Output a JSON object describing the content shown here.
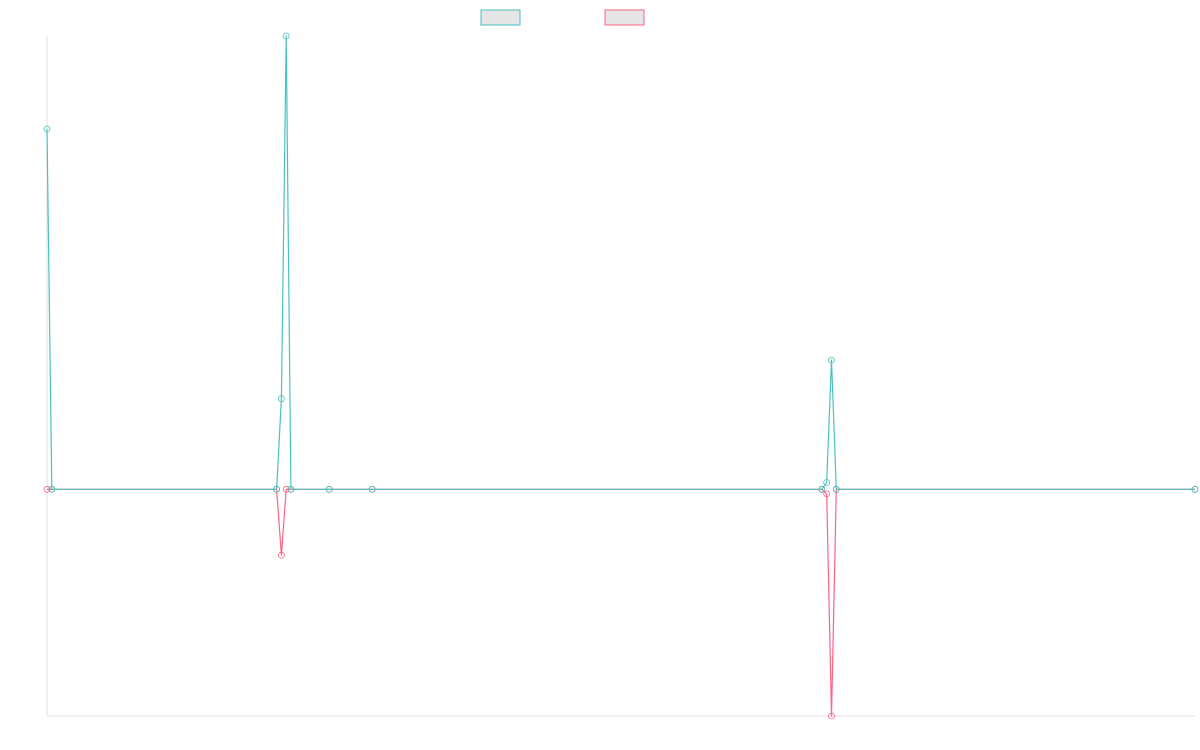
{
  "colors": {
    "series_a_stroke": "#4bc0c0",
    "series_b_stroke": "#ff6384",
    "legend_fill": "#e6e6e6",
    "axis": "#e0e0e0",
    "background": "#ffffff"
  },
  "chart_data": {
    "type": "line",
    "title": "",
    "xlabel": "",
    "ylabel": "",
    "grid": false,
    "legend_position": "top",
    "x": [
      0,
      1,
      48,
      49,
      50,
      51,
      59,
      68,
      162,
      163,
      164,
      165,
      240
    ],
    "ylim": [
      -100,
      200
    ],
    "series": [
      {
        "values": [
          159,
          0,
          0,
          40,
          200,
          0,
          0,
          0,
          0,
          3,
          57,
          0,
          0
        ]
      },
      {
        "values": [
          0,
          0,
          0,
          -29,
          0,
          0,
          0,
          0,
          0,
          -2,
          -100,
          0,
          0
        ]
      }
    ]
  }
}
